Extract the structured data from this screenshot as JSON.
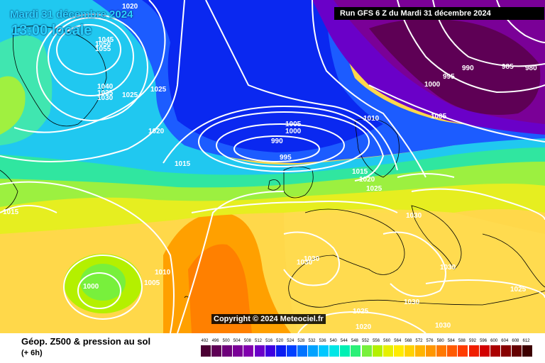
{
  "header": {
    "date_line": "Mardi 31 décembre 2024",
    "time_line": "13:00 locale",
    "run_info": "Run GFS 6 Z du Mardi 31 décembre 2024"
  },
  "copyright": "Copyright © 2024 Meteociel.fr",
  "footer": {
    "title": "Géop. Z500 & pression au sol",
    "subtitle": "(+ 6h)"
  },
  "scale": {
    "values": [
      "492",
      "496",
      "500",
      "504",
      "508",
      "512",
      "516",
      "520",
      "524",
      "528",
      "532",
      "536",
      "540",
      "544",
      "548",
      "552",
      "556",
      "560",
      "564",
      "568",
      "572",
      "576",
      "580",
      "584",
      "588",
      "592",
      "596",
      "600",
      "604",
      "608",
      "612"
    ],
    "colors": [
      "#4a0033",
      "#5e0055",
      "#6d007a",
      "#7a0097",
      "#8100ad",
      "#6a00c8",
      "#3d00e0",
      "#0a1cf0",
      "#0040ff",
      "#0073ff",
      "#00a2ff",
      "#00c8ff",
      "#00e6e6",
      "#00f0b4",
      "#2bf078",
      "#78f03c",
      "#b4f000",
      "#e6f000",
      "#ffeb00",
      "#ffd200",
      "#ffb400",
      "#ff9600",
      "#ff7800",
      "#ff5a00",
      "#ff3c00",
      "#f01e00",
      "#d20000",
      "#aa0000",
      "#870000",
      "#640000",
      "#3c0000"
    ]
  },
  "isobar_labels": [
    {
      "text": "1020"
    },
    {
      "text": "1045"
    },
    {
      "text": "1050"
    },
    {
      "text": "1055"
    },
    {
      "text": "1040"
    },
    {
      "text": "1035"
    },
    {
      "text": "1030"
    },
    {
      "text": "1025"
    },
    {
      "text": "1025"
    },
    {
      "text": "1020"
    },
    {
      "text": "1015"
    },
    {
      "text": "1015"
    },
    {
      "text": "1005"
    },
    {
      "text": "1000"
    },
    {
      "text": "990"
    },
    {
      "text": "995"
    },
    {
      "text": "1010"
    },
    {
      "text": "1015"
    },
    {
      "text": "1020"
    },
    {
      "text": "1025"
    },
    {
      "text": "995"
    },
    {
      "text": "1000"
    },
    {
      "text": "990"
    },
    {
      "text": "985"
    },
    {
      "text": "980"
    },
    {
      "text": "1005"
    },
    {
      "text": "1030"
    },
    {
      "text": "1030"
    },
    {
      "text": "1030"
    },
    {
      "text": "1030"
    },
    {
      "text": "1030"
    },
    {
      "text": "1025"
    },
    {
      "text": "1025"
    },
    {
      "text": "1020"
    },
    {
      "text": "1030"
    },
    {
      "text": "1010"
    },
    {
      "text": "1005"
    },
    {
      "text": "1000"
    }
  ]
}
